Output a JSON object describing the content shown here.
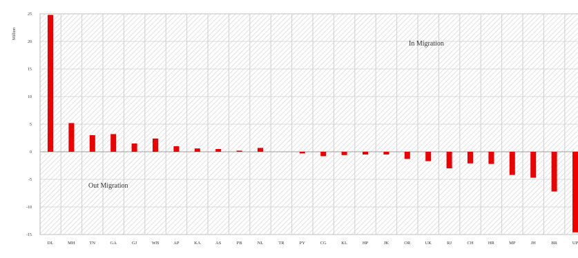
{
  "chart_data": {
    "type": "bar",
    "title": "",
    "ylabel": "Million",
    "xlabel": "",
    "ylim": [
      -15,
      25
    ],
    "yticks": [
      25,
      20,
      15,
      10,
      5,
      0,
      -5,
      -10,
      -15
    ],
    "grid": true,
    "categories": [
      "DL",
      "MH",
      "TN",
      "GA",
      "GJ",
      "WB",
      "AP",
      "KA",
      "AS",
      "PB",
      "NL",
      "TR",
      "PY",
      "CG",
      "KL",
      "HP",
      "JK",
      "OR",
      "UK",
      "RJ",
      "CH",
      "HR",
      "MP",
      "JH",
      "BR",
      "UP"
    ],
    "values": [
      24.8,
      5.2,
      3.0,
      3.2,
      1.5,
      2.4,
      1.0,
      0.6,
      0.5,
      0.2,
      0.7,
      0.0,
      -0.3,
      -0.8,
      -0.6,
      -0.5,
      -0.5,
      -1.3,
      -1.7,
      -3.0,
      -2.1,
      -2.2,
      -4.2,
      -4.7,
      -7.2,
      -14.6
    ],
    "annotations": [
      {
        "id": "in-migration",
        "text": "In Migration"
      },
      {
        "id": "out-migration",
        "text": "Out Migration"
      }
    ],
    "colors": {
      "bar": "#ee0000",
      "hatch": "#d8d8d8",
      "grid": "#cfcfcf",
      "axis": "#888888"
    }
  }
}
